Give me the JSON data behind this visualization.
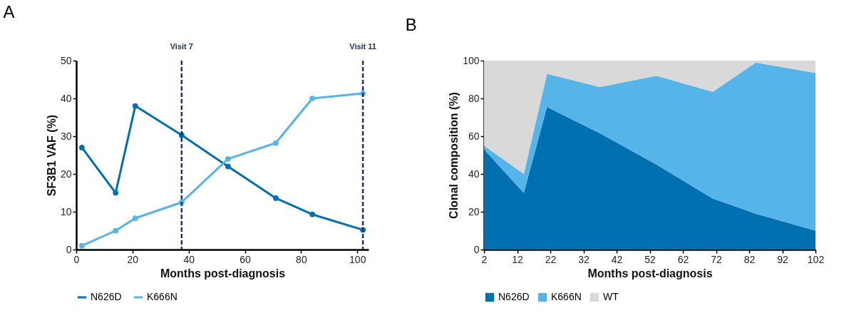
{
  "chart_data": [
    {
      "type": "line",
      "title": "A",
      "xlabel": "Months post-diagnosis",
      "ylabel": "SF3B1 VAF (%)",
      "x": [
        2,
        14,
        21,
        37.5,
        54,
        71,
        84,
        102
      ],
      "xlim": [
        0,
        104
      ],
      "xticks": [
        0,
        20,
        40,
        60,
        80,
        100
      ],
      "ylim": [
        0,
        50
      ],
      "yticks": [
        0,
        10,
        20,
        30,
        40,
        50
      ],
      "grid": false,
      "legend": "bottom",
      "marker": "circle",
      "line_style": "solid",
      "series": [
        {
          "name": "N626D",
          "color": "#0070b0",
          "values": [
            27,
            15,
            38,
            30.3,
            22,
            13.6,
            9.3,
            5.2
          ]
        },
        {
          "name": "K666N",
          "color": "#56b4e9",
          "values": [
            1,
            5,
            8.3,
            12.5,
            24,
            28.2,
            40,
            41.3
          ]
        }
      ],
      "ref_lines": [
        {
          "axis": "x",
          "value": 37.5,
          "label": "Visit 7",
          "color": "#1f2f6b",
          "line_style": "dashed"
        },
        {
          "axis": "x",
          "value": 102,
          "label": "Visit 11",
          "color": "#1f2f6b",
          "line_style": "dashed"
        }
      ]
    },
    {
      "type": "area",
      "title": "B",
      "xlabel": "Months post-diagnosis",
      "ylabel": "Clonal composition (%)",
      "x": [
        2,
        14,
        21,
        37,
        54,
        71,
        84,
        102
      ],
      "xlim": [
        2,
        102
      ],
      "xticks": [
        2,
        12,
        22,
        32,
        42,
        52,
        62,
        72,
        82,
        92,
        102
      ],
      "ylim": [
        0,
        100
      ],
      "yticks": [
        0,
        20,
        40,
        60,
        80,
        100
      ],
      "stacked": true,
      "grid": false,
      "legend": "bottom",
      "series": [
        {
          "name": "N626D",
          "color": "#0070b0",
          "values": [
            53,
            30,
            75.5,
            61.5,
            45,
            27,
            19,
            10
          ]
        },
        {
          "name": "K666N",
          "color": "#56b4e9",
          "values": [
            2,
            10,
            17.5,
            24.5,
            47,
            56.5,
            80,
            83.5
          ]
        },
        {
          "name": "WT",
          "color": "#d9d9d9",
          "values": [
            45,
            60,
            7,
            14,
            8,
            16.5,
            1,
            6.5
          ]
        }
      ]
    }
  ]
}
